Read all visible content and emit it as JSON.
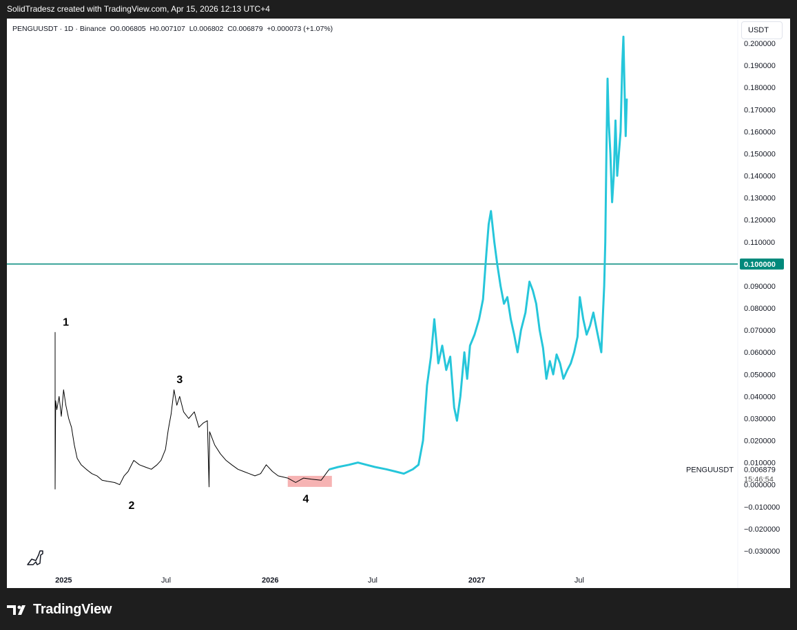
{
  "header": "SolidTradesz created with TradingView.com, Apr 15, 2026 12:13 UTC+4",
  "legend": {
    "symbol": "PENGUUSDT",
    "interval": "1D",
    "exchange": "Binance",
    "open": "O0.006805",
    "high": "H0.007107",
    "low": "L0.006802",
    "close": "C0.006879",
    "change": "+0.000073 (+1.07%)"
  },
  "price_scale_unit": "USDT",
  "footer_brand": "TradingView",
  "colors": {
    "history": "#000000",
    "projection": "#26c6da",
    "hline": "#00897b",
    "highlight_box": "#f4a6a6",
    "axis_text": "#131722"
  },
  "chart_data": {
    "type": "line",
    "symbol": "PENGUUSDT",
    "interval": "1D",
    "y_axis": {
      "ylim": [
        -0.035,
        0.205
      ],
      "ticks": [
        "0.200000",
        "0.190000",
        "0.180000",
        "0.170000",
        "0.160000",
        "0.150000",
        "0.140000",
        "0.130000",
        "0.120000",
        "0.110000",
        "0.100000",
        "0.090000",
        "0.080000",
        "0.070000",
        "0.060000",
        "0.050000",
        "0.040000",
        "0.030000",
        "0.020000",
        "0.010000",
        "0.000000",
        "−0.010000",
        "−0.020000",
        "−0.030000"
      ],
      "tick_values": [
        0.2,
        0.19,
        0.18,
        0.17,
        0.16,
        0.15,
        0.14,
        0.13,
        0.12,
        0.11,
        0.1,
        0.09,
        0.08,
        0.07,
        0.06,
        0.05,
        0.04,
        0.03,
        0.02,
        0.01,
        0.0,
        -0.01,
        -0.02,
        -0.03
      ]
    },
    "x_axis": {
      "range": [
        "2024-12-17",
        "2027-10-15"
      ],
      "ticks": [
        {
          "label": "2025",
          "date": "2025-01-01",
          "bold": true
        },
        {
          "label": "Jul",
          "date": "2025-07-01",
          "bold": false
        },
        {
          "label": "2026",
          "date": "2026-01-01",
          "bold": true
        },
        {
          "label": "Jul",
          "date": "2026-07-01",
          "bold": false
        },
        {
          "label": "2027",
          "date": "2027-01-01",
          "bold": true
        },
        {
          "label": "Jul",
          "date": "2027-07-01",
          "bold": false
        }
      ]
    },
    "horizontal_line": {
      "value": 0.1,
      "label": "0.100000"
    },
    "last_price": {
      "symbol": "PENGUUSDT",
      "value": "0.006879",
      "countdown": "15:46:54"
    },
    "series": [
      {
        "kind": "history",
        "points": [
          [
            "2024-12-17",
            0.03
          ],
          [
            "2024-12-17",
            0.069
          ],
          [
            "2024-12-17",
            -0.002
          ],
          [
            "2024-12-18",
            0.038
          ],
          [
            "2024-12-20",
            0.034
          ],
          [
            "2024-12-24",
            0.04
          ],
          [
            "2024-12-28",
            0.031
          ],
          [
            "2025-01-01",
            0.043
          ],
          [
            "2025-01-05",
            0.036
          ],
          [
            "2025-01-10",
            0.03
          ],
          [
            "2025-01-15",
            0.026
          ],
          [
            "2025-01-20",
            0.018
          ],
          [
            "2025-01-25",
            0.012
          ],
          [
            "2025-02-01",
            0.009
          ],
          [
            "2025-02-10",
            0.007
          ],
          [
            "2025-02-20",
            0.005
          ],
          [
            "2025-03-01",
            0.004
          ],
          [
            "2025-03-10",
            0.002
          ],
          [
            "2025-03-20",
            0.0015
          ],
          [
            "2025-04-01",
            0.001
          ],
          [
            "2025-04-10",
            0.0
          ],
          [
            "2025-04-18",
            0.004
          ],
          [
            "2025-04-25",
            0.006
          ],
          [
            "2025-05-05",
            0.011
          ],
          [
            "2025-05-15",
            0.009
          ],
          [
            "2025-05-25",
            0.008
          ],
          [
            "2025-06-05",
            0.007
          ],
          [
            "2025-06-15",
            0.009
          ],
          [
            "2025-06-22",
            0.011
          ],
          [
            "2025-06-30",
            0.016
          ],
          [
            "2025-07-05",
            0.025
          ],
          [
            "2025-07-10",
            0.032
          ],
          [
            "2025-07-15",
            0.043
          ],
          [
            "2025-07-20",
            0.036
          ],
          [
            "2025-07-25",
            0.04
          ],
          [
            "2025-08-01",
            0.033
          ],
          [
            "2025-08-10",
            0.03
          ],
          [
            "2025-08-20",
            0.033
          ],
          [
            "2025-08-28",
            0.026
          ],
          [
            "2025-09-05",
            0.028
          ],
          [
            "2025-09-12",
            0.029
          ],
          [
            "2025-09-15",
            -0.001
          ],
          [
            "2025-09-16",
            0.024
          ],
          [
            "2025-09-25",
            0.018
          ],
          [
            "2025-10-05",
            0.014
          ],
          [
            "2025-10-15",
            0.011
          ],
          [
            "2025-10-25",
            0.009
          ],
          [
            "2025-11-05",
            0.007
          ],
          [
            "2025-11-15",
            0.006
          ],
          [
            "2025-11-25",
            0.005
          ],
          [
            "2025-12-05",
            0.004
          ],
          [
            "2025-12-15",
            0.005
          ],
          [
            "2025-12-25",
            0.009
          ],
          [
            "2026-01-05",
            0.006
          ],
          [
            "2026-01-15",
            0.004
          ],
          [
            "2026-02-01",
            0.003
          ],
          [
            "2026-02-15",
            0.001
          ],
          [
            "2026-03-01",
            0.003
          ],
          [
            "2026-03-15",
            0.0025
          ],
          [
            "2026-04-01",
            0.002
          ],
          [
            "2026-04-15",
            0.006879
          ]
        ]
      },
      {
        "kind": "projection",
        "points": [
          [
            "2026-04-15",
            0.006879
          ],
          [
            "2026-05-01",
            0.008
          ],
          [
            "2026-05-20",
            0.009
          ],
          [
            "2026-06-05",
            0.01
          ],
          [
            "2026-06-20",
            0.009
          ],
          [
            "2026-07-05",
            0.008
          ],
          [
            "2026-07-25",
            0.007
          ],
          [
            "2026-08-10",
            0.006
          ],
          [
            "2026-08-25",
            0.005
          ],
          [
            "2026-09-10",
            0.007
          ],
          [
            "2026-09-20",
            0.009
          ],
          [
            "2026-09-28",
            0.02
          ],
          [
            "2026-10-05",
            0.045
          ],
          [
            "2026-10-12",
            0.058
          ],
          [
            "2026-10-18",
            0.075
          ],
          [
            "2026-10-25",
            0.055
          ],
          [
            "2026-11-01",
            0.063
          ],
          [
            "2026-11-08",
            0.052
          ],
          [
            "2026-11-15",
            0.058
          ],
          [
            "2026-11-22",
            0.035
          ],
          [
            "2026-11-27",
            0.029
          ],
          [
            "2026-12-03",
            0.04
          ],
          [
            "2026-12-10",
            0.06
          ],
          [
            "2026-12-15",
            0.048
          ],
          [
            "2026-12-20",
            0.063
          ],
          [
            "2026-12-28",
            0.068
          ],
          [
            "2027-01-05",
            0.075
          ],
          [
            "2027-01-12",
            0.084
          ],
          [
            "2027-01-18",
            0.105
          ],
          [
            "2027-01-22",
            0.118
          ],
          [
            "2027-01-26",
            0.124
          ],
          [
            "2027-02-01",
            0.11
          ],
          [
            "2027-02-06",
            0.1
          ],
          [
            "2027-02-12",
            0.09
          ],
          [
            "2027-02-18",
            0.082
          ],
          [
            "2027-02-24",
            0.085
          ],
          [
            "2027-03-02",
            0.075
          ],
          [
            "2027-03-08",
            0.068
          ],
          [
            "2027-03-14",
            0.06
          ],
          [
            "2027-03-20",
            0.07
          ],
          [
            "2027-03-28",
            0.078
          ],
          [
            "2027-04-04",
            0.092
          ],
          [
            "2027-04-10",
            0.088
          ],
          [
            "2027-04-16",
            0.082
          ],
          [
            "2027-04-22",
            0.07
          ],
          [
            "2027-04-28",
            0.062
          ],
          [
            "2027-05-04",
            0.048
          ],
          [
            "2027-05-10",
            0.056
          ],
          [
            "2027-05-16",
            0.05
          ],
          [
            "2027-05-22",
            0.059
          ],
          [
            "2027-05-28",
            0.055
          ],
          [
            "2027-06-03",
            0.048
          ],
          [
            "2027-06-10",
            0.052
          ],
          [
            "2027-06-16",
            0.055
          ],
          [
            "2027-06-22",
            0.06
          ],
          [
            "2027-06-28",
            0.067
          ],
          [
            "2027-07-02",
            0.085
          ],
          [
            "2027-07-08",
            0.075
          ],
          [
            "2027-07-14",
            0.068
          ],
          [
            "2027-07-20",
            0.072
          ],
          [
            "2027-07-26",
            0.078
          ],
          [
            "2027-08-01",
            0.07
          ],
          [
            "2027-08-05",
            0.065
          ],
          [
            "2027-08-09",
            0.06
          ],
          [
            "2027-08-12",
            0.078
          ],
          [
            "2027-08-14",
            0.09
          ],
          [
            "2027-08-16",
            0.11
          ],
          [
            "2027-08-18",
            0.15
          ],
          [
            "2027-08-20",
            0.184
          ],
          [
            "2027-08-22",
            0.165
          ],
          [
            "2027-08-25",
            0.15
          ],
          [
            "2027-08-28",
            0.128
          ],
          [
            "2027-08-31",
            0.14
          ],
          [
            "2027-09-03",
            0.165
          ],
          [
            "2027-09-06",
            0.14
          ],
          [
            "2027-09-09",
            0.15
          ],
          [
            "2027-09-12",
            0.16
          ],
          [
            "2027-09-15",
            0.19
          ],
          [
            "2027-09-17",
            0.203
          ],
          [
            "2027-09-19",
            0.18
          ],
          [
            "2027-09-21",
            0.158
          ],
          [
            "2027-09-23",
            0.175
          ]
        ]
      }
    ],
    "wave_labels": [
      {
        "label": "1",
        "date": "2025-01-05",
        "value": 0.072
      },
      {
        "label": "2",
        "date": "2025-05-01",
        "value": -0.011
      },
      {
        "label": "3",
        "date": "2025-07-25",
        "value": 0.046
      },
      {
        "label": "4",
        "date": "2026-03-05",
        "value": -0.008
      }
    ],
    "highlight": {
      "from": "2026-02-01",
      "to": "2026-04-20",
      "low": -0.001,
      "high": 0.004
    }
  }
}
